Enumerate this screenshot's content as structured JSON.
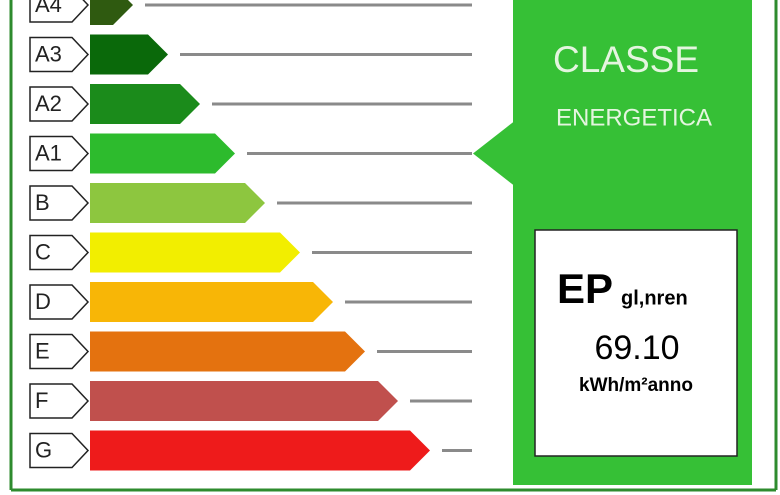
{
  "classes": [
    {
      "label": "A4",
      "color": "#2f5a10"
    },
    {
      "label": "A3",
      "color": "#0a690a"
    },
    {
      "label": "A2",
      "color": "#1b8b1b"
    },
    {
      "label": "A1",
      "color": "#2dbb2d"
    },
    {
      "label": "B",
      "color": "#8dc63f"
    },
    {
      "label": "C",
      "color": "#f2ee00"
    },
    {
      "label": "D",
      "color": "#f8b606"
    },
    {
      "label": "E",
      "color": "#e4720f"
    },
    {
      "label": "F",
      "color": "#c0504d"
    },
    {
      "label": "G",
      "color": "#ee1b1b"
    }
  ],
  "panel": {
    "title": "CLASSE",
    "subtitle": "ENERGETICA",
    "color": "#36c036",
    "indicator": "A1",
    "ep": "EP",
    "ep_subscript": "gl,nren",
    "value": "69.10",
    "unit": "kWh/m²anno"
  }
}
